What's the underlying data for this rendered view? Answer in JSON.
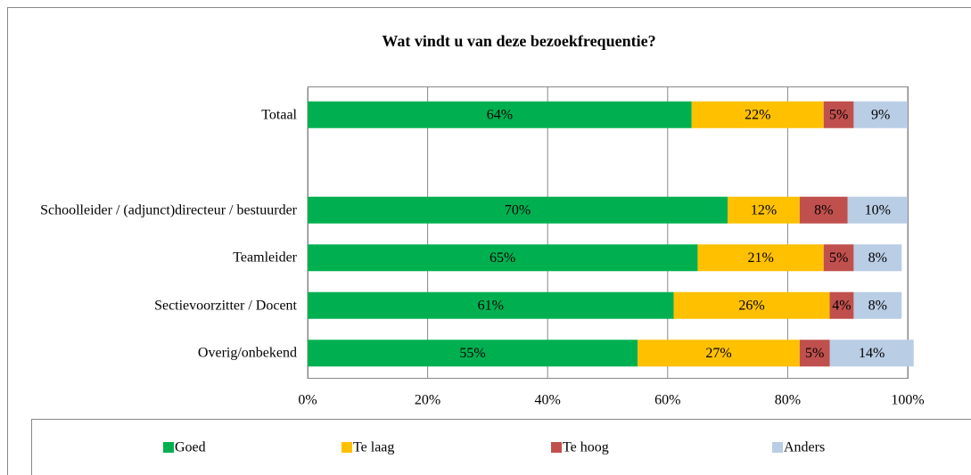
{
  "chart_data": {
    "type": "stacked-bar-horizontal",
    "title": "Wat vindt u van deze bezoekfrequentie?",
    "categories": [
      "Totaal",
      null,
      "Schoolleider / (adjunct)directeur / bestuurder",
      "Teamleider",
      "Sectievoorzitter / Docent",
      "Overig/onbekend"
    ],
    "series": [
      {
        "name": "Goed",
        "color": "#00b050",
        "values": [
          64,
          null,
          70,
          65,
          61,
          55
        ],
        "value_labels": [
          "64%",
          null,
          "70%",
          "65%",
          "61%",
          "55%"
        ]
      },
      {
        "name": "Te laag",
        "color": "#ffc000",
        "values": [
          22,
          null,
          12,
          21,
          26,
          27
        ],
        "value_labels": [
          "22%",
          null,
          "12%",
          "21%",
          "26%",
          "27%"
        ]
      },
      {
        "name": "Te hoog",
        "color": "#c0504d",
        "values": [
          5,
          null,
          8,
          5,
          4,
          5
        ],
        "value_labels": [
          "5%",
          null,
          "8%",
          "5%",
          "4%",
          "5%"
        ]
      },
      {
        "name": "Anders",
        "color": "#b9cde5",
        "values": [
          9,
          null,
          10,
          8,
          8,
          14
        ],
        "value_labels": [
          "9%",
          null,
          "10%",
          "8%",
          "8%",
          "14%"
        ]
      }
    ],
    "xlim": [
      0,
      100
    ],
    "xticks": [
      {
        "value": 0,
        "label": "0%"
      },
      {
        "value": 20,
        "label": "20%"
      },
      {
        "value": 40,
        "label": "40%"
      },
      {
        "value": 60,
        "label": "60%"
      },
      {
        "value": 80,
        "label": "80%"
      },
      {
        "value": 100,
        "label": "100%"
      }
    ],
    "grid": true
  }
}
